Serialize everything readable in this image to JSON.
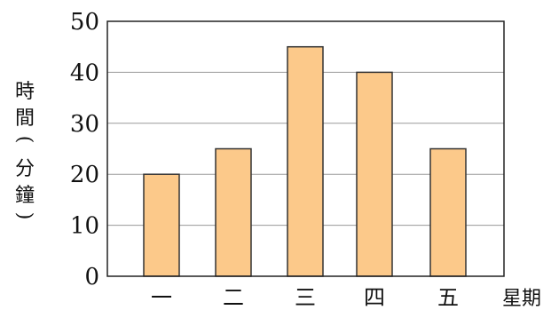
{
  "chart_data": {
    "type": "bar",
    "categories": [
      "一",
      "二",
      "三",
      "四",
      "五"
    ],
    "values": [
      20,
      25,
      45,
      40,
      25
    ],
    "title": "",
    "xlabel": "星期",
    "ylabel": "時間(分鐘)",
    "ylabel_chars": [
      "時",
      "間",
      "(",
      "分",
      "鐘",
      ")"
    ],
    "ylim": [
      0,
      50
    ],
    "yticks": [
      "0",
      "10",
      "20",
      "30",
      "40",
      "50"
    ],
    "grid": true,
    "bar_color": "#fcc98a"
  }
}
